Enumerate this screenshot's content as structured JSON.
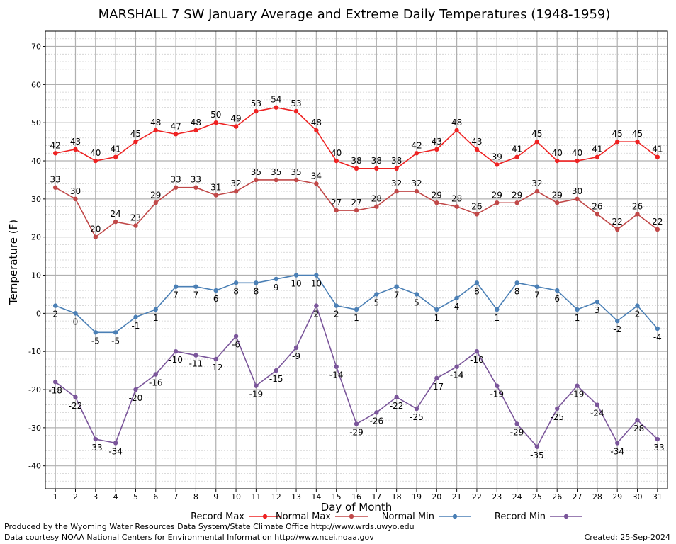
{
  "chart_data": {
    "type": "line",
    "title": "MARSHALL 7 SW January Average and Extreme Daily Temperatures (1948-1959)",
    "xlabel": "Day of Month",
    "ylabel": "Temperature (F)",
    "x": [
      1,
      2,
      3,
      4,
      5,
      6,
      7,
      8,
      9,
      10,
      11,
      12,
      13,
      14,
      15,
      16,
      17,
      18,
      19,
      20,
      21,
      22,
      23,
      24,
      25,
      26,
      27,
      28,
      29,
      30,
      31
    ],
    "xlim": [
      0.5,
      31.5
    ],
    "ylim": [
      -46,
      74
    ],
    "yticks": [
      -40,
      -30,
      -20,
      -10,
      0,
      10,
      20,
      30,
      40,
      50,
      60,
      70
    ],
    "grid": true,
    "legend_position": "bottom",
    "series": [
      {
        "name": "Record Max",
        "color": "#ee2222",
        "label_pos": "above",
        "values": [
          42,
          43,
          40,
          41,
          45,
          48,
          47,
          48,
          50,
          49,
          53,
          54,
          53,
          48,
          40,
          38,
          38,
          38,
          42,
          43,
          48,
          43,
          39,
          41,
          45,
          40,
          40,
          41,
          45,
          45,
          41
        ]
      },
      {
        "name": "Normal Max",
        "color": "#c04848",
        "label_pos": "above",
        "values": [
          33,
          30,
          20,
          24,
          23,
          29,
          33,
          33,
          31,
          32,
          35,
          35,
          35,
          34,
          27,
          27,
          28,
          32,
          32,
          29,
          28,
          26,
          29,
          29,
          32,
          29,
          30,
          26,
          22,
          26,
          22
        ]
      },
      {
        "name": "Normal Min",
        "color": "#4a7fb5",
        "label_pos": "below",
        "values": [
          2,
          0,
          -5,
          -5,
          -1,
          1,
          7,
          7,
          6,
          8,
          8,
          9,
          10,
          10,
          2,
          1,
          5,
          7,
          5,
          1,
          4,
          8,
          1,
          8,
          7,
          6,
          1,
          3,
          -2,
          2,
          -4
        ]
      },
      {
        "name": "Record Min",
        "color": "#7a559a",
        "label_pos": "below",
        "values": [
          -18,
          -22,
          -33,
          -34,
          -20,
          -16,
          -10,
          -11,
          -12,
          -6,
          -19,
          -15,
          -9,
          2,
          -14,
          -29,
          -26,
          -22,
          -25,
          -17,
          -14,
          -10,
          -19,
          -29,
          -35,
          -25,
          -19,
          -24,
          -34,
          -28,
          -33
        ]
      }
    ]
  },
  "footer": {
    "produced_by": "Produced by the Wyoming Water Resources Data System/State Climate Office http://www.wrds.uwyo.edu",
    "courtesy": "Data courtesy NOAA National Centers for Environmental Information http://www.ncei.noaa.gov",
    "created": "Created:  25-Sep-2024"
  }
}
